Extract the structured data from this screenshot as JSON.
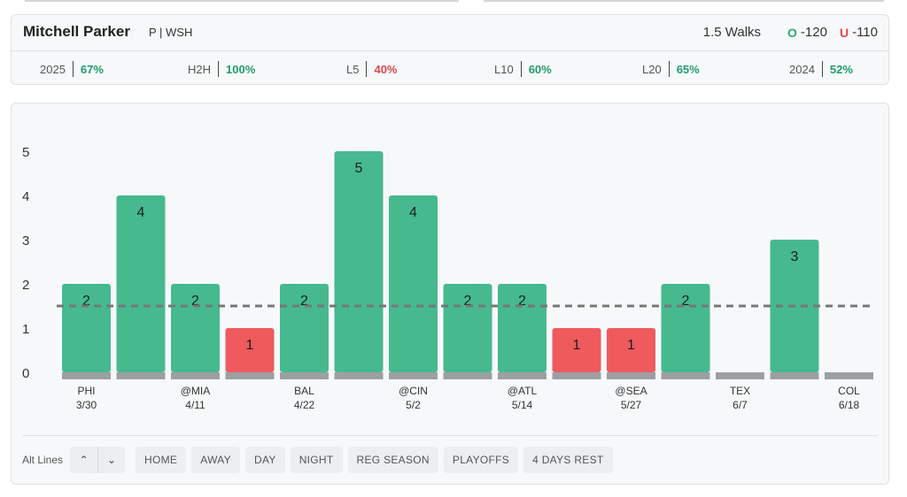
{
  "header": {
    "player_name": "Mitchell Parker",
    "position_team": "P | WSH",
    "market": "1.5 Walks",
    "over": {
      "letter": "O",
      "odds": "-120"
    },
    "under": {
      "letter": "U",
      "odds": "-110"
    }
  },
  "stats": [
    {
      "label": "2025",
      "value": "67%",
      "status": "good"
    },
    {
      "label": "H2H",
      "value": "100%",
      "status": "good"
    },
    {
      "label": "L5",
      "value": "40%",
      "status": "bad"
    },
    {
      "label": "L10",
      "value": "60%",
      "status": "good"
    },
    {
      "label": "L20",
      "value": "65%",
      "status": "good"
    },
    {
      "label": "2024",
      "value": "52%",
      "status": "good"
    }
  ],
  "colors": {
    "hit": "#46b98f",
    "miss": "#ef5a5d",
    "base": "#9d9fa3",
    "line": "#777777",
    "good_text": "#1f9d6b",
    "bad_text": "#e0474c"
  },
  "chart_data": {
    "type": "bar",
    "line_value": 1.5,
    "ylim": [
      0,
      5
    ],
    "yticks": [
      "0",
      "1",
      "2",
      "3",
      "4",
      "5"
    ],
    "values": [
      2,
      4,
      2,
      1,
      2,
      5,
      4,
      2,
      2,
      1,
      1,
      2,
      0,
      3,
      0
    ],
    "x_labels": [
      {
        "opp": "PHI",
        "date": "3/30"
      },
      {
        "opp": "",
        "date": ""
      },
      {
        "opp": "@MIA",
        "date": "4/11"
      },
      {
        "opp": "",
        "date": ""
      },
      {
        "opp": "BAL",
        "date": "4/22"
      },
      {
        "opp": "",
        "date": ""
      },
      {
        "opp": "@CIN",
        "date": "5/2"
      },
      {
        "opp": "",
        "date": ""
      },
      {
        "opp": "@ATL",
        "date": "5/14"
      },
      {
        "opp": "",
        "date": ""
      },
      {
        "opp": "@SEA",
        "date": "5/27"
      },
      {
        "opp": "",
        "date": ""
      },
      {
        "opp": "TEX",
        "date": "6/7"
      },
      {
        "opp": "",
        "date": ""
      },
      {
        "opp": "COL",
        "date": "6/18"
      }
    ]
  },
  "filters": {
    "alt_lines_label": "Alt Lines",
    "up_icon": "chevron-up-icon",
    "down_icon": "chevron-down-icon",
    "up_glyph": "⌃",
    "down_glyph": "⌄",
    "chips": [
      "HOME",
      "AWAY",
      "DAY",
      "NIGHT",
      "REG SEASON",
      "PLAYOFFS",
      "4 DAYS REST"
    ]
  }
}
